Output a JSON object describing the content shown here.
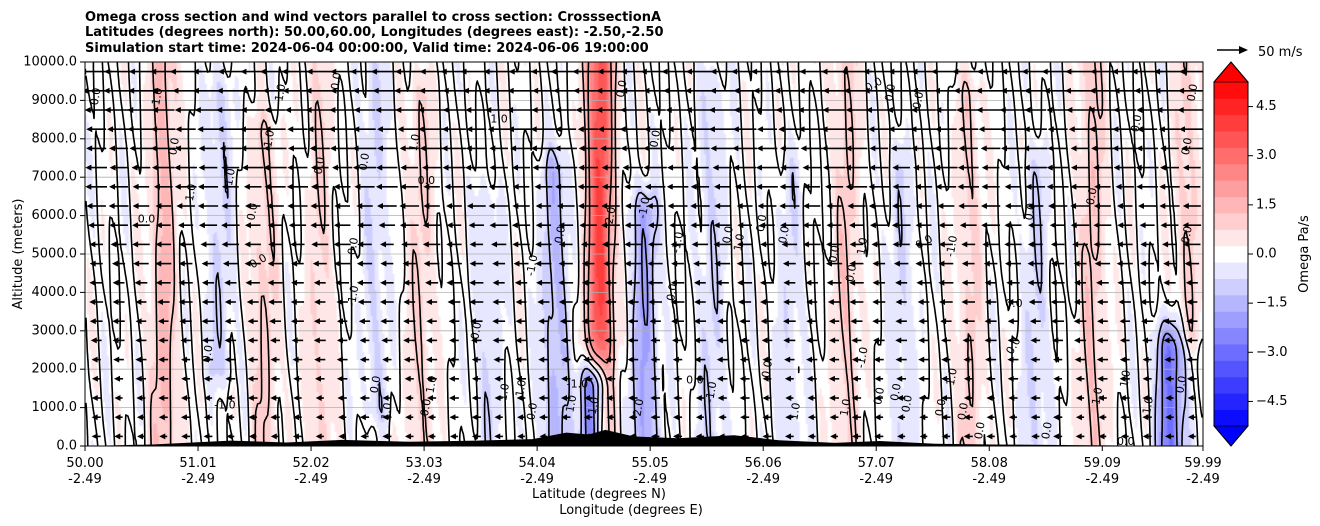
{
  "chart_data": {
    "type": "heatmap",
    "title_lines": [
      "Omega cross section and wind vectors parallel to cross section: CrosssectionA",
      "Latitudes (degrees north): 50.00,60.00, Longitudes (degrees east): -2.50,-2.50",
      "Simulation start time: 2024-06-04 00:00:00, Valid time: 2024-06-06 19:00:00"
    ],
    "xlabel_lines": [
      "Latitude (degrees N)",
      "Longitude (degrees E)"
    ],
    "ylabel": "Altitude (meters)",
    "x_range": [
      50.0,
      59.99
    ],
    "y_range": [
      0,
      10000
    ],
    "x_ticks": [
      {
        "lat": "50.00",
        "lon": "-2.49",
        "value": 50.0
      },
      {
        "lat": "51.01",
        "lon": "-2.49",
        "value": 51.01
      },
      {
        "lat": "52.02",
        "lon": "-2.49",
        "value": 52.02
      },
      {
        "lat": "53.03",
        "lon": "-2.49",
        "value": 53.03
      },
      {
        "lat": "54.04",
        "lon": "-2.49",
        "value": 54.04
      },
      {
        "lat": "55.05",
        "lon": "-2.49",
        "value": 55.05
      },
      {
        "lat": "56.06",
        "lon": "-2.49",
        "value": 56.06
      },
      {
        "lat": "57.07",
        "lon": "-2.49",
        "value": 57.07
      },
      {
        "lat": "58.08",
        "lon": "-2.49",
        "value": 58.08
      },
      {
        "lat": "59.09",
        "lon": "-2.49",
        "value": 59.09
      },
      {
        "lat": "59.99",
        "lon": "-2.49",
        "value": 59.99
      }
    ],
    "y_ticks": [
      {
        "label": "0.0",
        "value": 0
      },
      {
        "label": "1000.0",
        "value": 1000
      },
      {
        "label": "2000.0",
        "value": 2000
      },
      {
        "label": "3000.0",
        "value": 3000
      },
      {
        "label": "4000.0",
        "value": 4000
      },
      {
        "label": "5000.0",
        "value": 5000
      },
      {
        "label": "6000.0",
        "value": 6000
      },
      {
        "label": "7000.0",
        "value": 7000
      },
      {
        "label": "8000.0",
        "value": 8000
      },
      {
        "label": "9000.0",
        "value": 9000
      },
      {
        "label": "10000.0",
        "value": 10000
      }
    ],
    "grid": "horizontal",
    "colorbar": {
      "label": "Omega Pa/s",
      "range": [
        -5.25,
        5.25
      ],
      "extend": "both",
      "colormap": "bwr",
      "ticks": [
        {
          "label": "4.5",
          "value": 4.5
        },
        {
          "label": "3.0",
          "value": 3.0
        },
        {
          "label": "1.5",
          "value": 1.5
        },
        {
          "label": "0.0",
          "value": 0.0
        },
        {
          "label": "−1.5",
          "value": -1.5
        },
        {
          "label": "−3.0",
          "value": -3.0
        },
        {
          "label": "−4.5",
          "value": -4.5
        }
      ]
    },
    "quiver_key": {
      "label": "50 m/s",
      "speed": 50
    },
    "features": [
      {
        "lat": 50.7,
        "h0": 0,
        "h1": 10000,
        "amp": 1.4
      },
      {
        "lat": 51.2,
        "h0": 2000,
        "h1": 9000,
        "amp": -0.8
      },
      {
        "lat": 51.6,
        "h0": 0,
        "h1": 8000,
        "amp": 1.0
      },
      {
        "lat": 52.1,
        "h0": 0,
        "h1": 10000,
        "amp": 0.8
      },
      {
        "lat": 52.6,
        "h0": 1000,
        "h1": 10000,
        "amp": -0.7
      },
      {
        "lat": 53.0,
        "h0": 0,
        "h1": 9000,
        "amp": 0.9
      },
      {
        "lat": 53.6,
        "h0": 0,
        "h1": 6000,
        "amp": -0.7
      },
      {
        "lat": 54.2,
        "h0": 0,
        "h1": 7000,
        "amp": -1.4
      },
      {
        "lat": 54.6,
        "h0": 0,
        "h1": 10000,
        "amp": 3.8
      },
      {
        "lat": 54.55,
        "h0": 0,
        "h1": 1500,
        "amp": -5.0
      },
      {
        "lat": 55.0,
        "h0": 0,
        "h1": 6000,
        "amp": -1.8
      },
      {
        "lat": 55.6,
        "h0": 0,
        "h1": 9000,
        "amp": -0.8
      },
      {
        "lat": 56.3,
        "h0": 0,
        "h1": 7000,
        "amp": -0.6
      },
      {
        "lat": 56.8,
        "h0": 0,
        "h1": 10000,
        "amp": 1.0
      },
      {
        "lat": 57.3,
        "h0": 0,
        "h1": 7000,
        "amp": -0.7
      },
      {
        "lat": 57.9,
        "h0": 0,
        "h1": 9000,
        "amp": 0.9
      },
      {
        "lat": 58.5,
        "h0": 0,
        "h1": 7000,
        "amp": -0.8
      },
      {
        "lat": 59.0,
        "h0": 0,
        "h1": 10000,
        "amp": 1.1
      },
      {
        "lat": 59.7,
        "h0": 0,
        "h1": 2500,
        "amp": -2.8
      },
      {
        "lat": 59.85,
        "h0": 3000,
        "h1": 10000,
        "amp": 0.9
      }
    ],
    "terrain": [
      {
        "lat": 50.0,
        "h": 0
      },
      {
        "lat": 50.6,
        "h": 40
      },
      {
        "lat": 51.3,
        "h": 140
      },
      {
        "lat": 51.8,
        "h": 90
      },
      {
        "lat": 52.3,
        "h": 160
      },
      {
        "lat": 52.9,
        "h": 110
      },
      {
        "lat": 53.5,
        "h": 140
      },
      {
        "lat": 54.0,
        "h": 180
      },
      {
        "lat": 54.3,
        "h": 350
      },
      {
        "lat": 54.5,
        "h": 300
      },
      {
        "lat": 54.65,
        "h": 420
      },
      {
        "lat": 54.9,
        "h": 250
      },
      {
        "lat": 55.3,
        "h": 200
      },
      {
        "lat": 55.8,
        "h": 280
      },
      {
        "lat": 56.2,
        "h": 150
      },
      {
        "lat": 56.7,
        "h": 80
      },
      {
        "lat": 57.1,
        "h": 130
      },
      {
        "lat": 57.6,
        "h": 60
      },
      {
        "lat": 58.1,
        "h": 40
      },
      {
        "lat": 59.0,
        "h": 20
      },
      {
        "lat": 59.99,
        "h": 0
      }
    ],
    "contour_labels": [
      {
        "text": "0.0",
        "lat": 50.1,
        "alt": 9100,
        "rot": -80
      },
      {
        "text": "1.0",
        "lat": 50.65,
        "alt": 9100,
        "rot": -80
      },
      {
        "text": "0.0",
        "lat": 50.8,
        "alt": 7800,
        "rot": -80
      },
      {
        "text": "1.0",
        "lat": 50.95,
        "alt": 6600,
        "rot": -80
      },
      {
        "text": "0.0",
        "lat": 50.55,
        "alt": 5900,
        "rot": 0
      },
      {
        "text": "1.0",
        "lat": 51.3,
        "alt": 7000,
        "rot": -80
      },
      {
        "text": "0.0",
        "lat": 51.5,
        "alt": 6100,
        "rot": -80
      },
      {
        "text": "0.0",
        "lat": 51.55,
        "alt": 4800,
        "rot": -30
      },
      {
        "text": "0.0",
        "lat": 51.1,
        "alt": 2400,
        "rot": -80
      },
      {
        "text": "-1.0",
        "lat": 51.25,
        "alt": 1050,
        "rot": 0
      },
      {
        "text": "1.0",
        "lat": 51.75,
        "alt": 9200,
        "rot": -80
      },
      {
        "text": "1.0",
        "lat": 51.65,
        "alt": 8000,
        "rot": -80
      },
      {
        "text": "0.0",
        "lat": 52.1,
        "alt": 7300,
        "rot": -80
      },
      {
        "text": "0.0",
        "lat": 52.4,
        "alt": 5200,
        "rot": -80
      },
      {
        "text": "0.0",
        "lat": 52.25,
        "alt": 9500,
        "rot": -80
      },
      {
        "text": "-1.0",
        "lat": 52.4,
        "alt": 3900,
        "rot": -80
      },
      {
        "text": "0.0",
        "lat": 52.6,
        "alt": 1600,
        "rot": -80
      },
      {
        "text": "1.0",
        "lat": 52.7,
        "alt": 900,
        "rot": -80
      },
      {
        "text": "0.0",
        "lat": 52.5,
        "alt": 7400,
        "rot": -80
      },
      {
        "text": "1.0",
        "lat": 52.95,
        "alt": 7900,
        "rot": -80
      },
      {
        "text": "0.0",
        "lat": 53.05,
        "alt": 6900,
        "rot": 0
      },
      {
        "text": "1.0",
        "lat": 53.1,
        "alt": 1600,
        "rot": -80
      },
      {
        "text": "0.0",
        "lat": 53.05,
        "alt": 1000,
        "rot": -80
      },
      {
        "text": "1.0",
        "lat": 53.7,
        "alt": 8500,
        "rot": 0
      },
      {
        "text": "0.0",
        "lat": 53.5,
        "alt": 3000,
        "rot": -80
      },
      {
        "text": "1.0",
        "lat": 53.75,
        "alt": 1400,
        "rot": -80
      },
      {
        "text": "1.0",
        "lat": 53.9,
        "alt": 1500,
        "rot": -80
      },
      {
        "text": "0.0",
        "lat": 54.0,
        "alt": 900,
        "rot": -80
      },
      {
        "text": "-1.0",
        "lat": 54.0,
        "alt": 4700,
        "rot": -80
      },
      {
        "text": "0.0",
        "lat": 54.25,
        "alt": 5500,
        "rot": -80
      },
      {
        "text": "2.0",
        "lat": 54.7,
        "alt": 6000,
        "rot": -80
      },
      {
        "text": "-1.0",
        "lat": 54.4,
        "alt": 1600,
        "rot": 0
      },
      {
        "text": "1.0",
        "lat": 54.35,
        "alt": 1100,
        "rot": -80
      },
      {
        "text": "1.0",
        "lat": 54.55,
        "alt": 1050,
        "rot": -80
      },
      {
        "text": "2.0",
        "lat": 54.95,
        "alt": 1000,
        "rot": -80
      },
      {
        "text": "0.0",
        "lat": 54.8,
        "alt": 9300,
        "rot": -80
      },
      {
        "text": "0.0",
        "lat": 55.1,
        "alt": 8000,
        "rot": -80
      },
      {
        "text": "-1.0",
        "lat": 55.0,
        "alt": 6200,
        "rot": -80
      },
      {
        "text": "-1.0",
        "lat": 55.3,
        "alt": 5300,
        "rot": -80
      },
      {
        "text": "0.0",
        "lat": 55.25,
        "alt": 4000,
        "rot": -80
      },
      {
        "text": "0.0",
        "lat": 55.45,
        "alt": 1700,
        "rot": 0
      },
      {
        "text": "-1.0",
        "lat": 55.6,
        "alt": 1400,
        "rot": -80
      },
      {
        "text": "0.0",
        "lat": 55.75,
        "alt": 5500,
        "rot": -80
      },
      {
        "text": "1.0",
        "lat": 55.85,
        "alt": 5300,
        "rot": -80
      },
      {
        "text": "0.0",
        "lat": 56.05,
        "alt": 5800,
        "rot": -80
      },
      {
        "text": "0.0",
        "lat": 56.25,
        "alt": 5500,
        "rot": -80
      },
      {
        "text": "0.0",
        "lat": 56.1,
        "alt": 2000,
        "rot": -80
      },
      {
        "text": "1.0",
        "lat": 56.35,
        "alt": 900,
        "rot": -80
      },
      {
        "text": "0.0",
        "lat": 56.7,
        "alt": 5000,
        "rot": -80
      },
      {
        "text": "0.0",
        "lat": 56.85,
        "alt": 4500,
        "rot": -80
      },
      {
        "text": "1.0",
        "lat": 56.95,
        "alt": 5200,
        "rot": -80
      },
      {
        "text": "-1.0",
        "lat": 56.95,
        "alt": 2300,
        "rot": -80
      },
      {
        "text": "1.0",
        "lat": 56.8,
        "alt": 1000,
        "rot": -80
      },
      {
        "text": "0.0",
        "lat": 57.1,
        "alt": 1300,
        "rot": -80
      },
      {
        "text": "0.0",
        "lat": 57.05,
        "alt": 9400,
        "rot": -30
      },
      {
        "text": "0.0",
        "lat": 57.2,
        "alt": 9200,
        "rot": -80
      },
      {
        "text": "0.0",
        "lat": 57.45,
        "alt": 9000,
        "rot": -80
      },
      {
        "text": "0.0",
        "lat": 57.5,
        "alt": 5300,
        "rot": -30
      },
      {
        "text": "-1.0",
        "lat": 57.75,
        "alt": 5200,
        "rot": -80
      },
      {
        "text": "1.0",
        "lat": 57.75,
        "alt": 1800,
        "rot": -80
      },
      {
        "text": "0.0",
        "lat": 57.25,
        "alt": 1400,
        "rot": -80
      },
      {
        "text": "0.0",
        "lat": 57.35,
        "alt": 1100,
        "rot": -80
      },
      {
        "text": "0.0",
        "lat": 57.65,
        "alt": 1000,
        "rot": -80
      },
      {
        "text": "0.0",
        "lat": 57.85,
        "alt": 900,
        "rot": -80
      },
      {
        "text": "0.0",
        "lat": 58.3,
        "alt": 3700,
        "rot": 0
      },
      {
        "text": "0.0",
        "lat": 58.3,
        "alt": 2600,
        "rot": -60
      },
      {
        "text": "0.0",
        "lat": 58.45,
        "alt": 6100,
        "rot": -80
      },
      {
        "text": "0.0",
        "lat": 58.0,
        "alt": 400,
        "rot": -80
      },
      {
        "text": "0.0",
        "lat": 58.6,
        "alt": 400,
        "rot": -80
      },
      {
        "text": "1.0",
        "lat": 59.05,
        "alt": 1300,
        "rot": -80
      },
      {
        "text": "1.0",
        "lat": 59.3,
        "alt": 1750,
        "rot": -80
      },
      {
        "text": "0.0",
        "lat": 59.0,
        "alt": 6500,
        "rot": -80
      },
      {
        "text": "0.0",
        "lat": 59.4,
        "alt": 8400,
        "rot": -80
      },
      {
        "text": "0.0",
        "lat": 59.9,
        "alt": 9200,
        "rot": -80
      },
      {
        "text": "0.0",
        "lat": 59.85,
        "alt": 7800,
        "rot": -80
      },
      {
        "text": "0.0",
        "lat": 59.85,
        "alt": 5500,
        "rot": -80
      },
      {
        "text": "0.0",
        "lat": 59.3,
        "alt": 100,
        "rot": 0
      },
      {
        "text": "-1.0",
        "lat": 59.5,
        "alt": 1000,
        "rot": -80
      },
      {
        "text": "0.0",
        "lat": 59.8,
        "alt": 1600,
        "rot": -80
      }
    ]
  }
}
